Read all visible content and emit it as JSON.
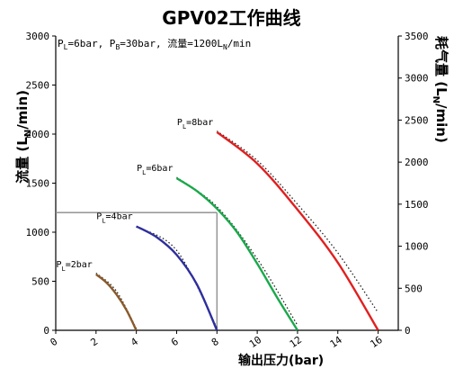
{
  "chart_data": {
    "type": "line",
    "title": "GPV02工作曲线",
    "ylabel": "流量 (L_N/min)",
    "y2label": "耗气量 (L_N/min)",
    "xlabel": "输出压力(bar)",
    "condition": "P_L=6bar, P_B=30bar, 流量=1200L_N/min",
    "xlim": [
      0,
      17
    ],
    "ylim": [
      0,
      3000
    ],
    "y2lim": [
      0,
      3500
    ],
    "xticks": [
      0,
      2,
      4,
      6,
      8,
      10,
      12,
      14,
      16
    ],
    "yticks": [
      0,
      500,
      1000,
      1500,
      2000,
      2500,
      3000
    ],
    "y2ticks": [
      0,
      500,
      1000,
      1500,
      2000,
      2500,
      3000,
      3500
    ],
    "series": [
      {
        "name": "P_L=2bar",
        "color": "#8B5A2B",
        "x": [
          2.0,
          2.5,
          3.0,
          3.5,
          4.0
        ],
        "y": [
          570,
          490,
          370,
          210,
          0
        ]
      },
      {
        "name": "P_L=4bar",
        "color": "#2E2E9E",
        "x": [
          4.0,
          5.0,
          6.0,
          7.0,
          8.0
        ],
        "y": [
          1060,
          950,
          770,
          470,
          0
        ]
      },
      {
        "name": "P_L=6bar",
        "color": "#1AA84B",
        "x": [
          6.0,
          7.0,
          8.0,
          9.0,
          10.0,
          11.0,
          12.0
        ],
        "y": [
          1550,
          1420,
          1240,
          1000,
          680,
          330,
          0
        ]
      },
      {
        "name": "P_L=8bar",
        "color": "#E02020",
        "x": [
          8.0,
          10.0,
          12.0,
          14.0,
          16.0
        ],
        "y": [
          2020,
          1700,
          1230,
          690,
          0
        ]
      }
    ],
    "consumption_series": [
      {
        "name": "P_L=2bar",
        "x": [
          2.0,
          3.0,
          4.0
        ],
        "y": [
          680,
          470,
          20
        ]
      },
      {
        "name": "P_L=4bar",
        "x": [
          4.0,
          6.0,
          8.0
        ],
        "y": [
          1230,
          950,
          30
        ]
      },
      {
        "name": "P_L=6bar",
        "x": [
          6.0,
          8.0,
          10.0,
          12.0
        ],
        "y": [
          1820,
          1470,
          850,
          60
        ]
      },
      {
        "name": "P_L=8bar",
        "x": [
          8.0,
          10.0,
          12.0,
          14.0,
          16.0
        ],
        "y": [
          2370,
          2020,
          1500,
          920,
          210
        ]
      }
    ],
    "series_labels": [
      "P_L=2bar",
      "P_L=4bar",
      "P_L=6bar",
      "P_L=8bar"
    ],
    "reference_point": {
      "x": 8,
      "y": 1200
    },
    "grid": false,
    "legend": "none"
  }
}
